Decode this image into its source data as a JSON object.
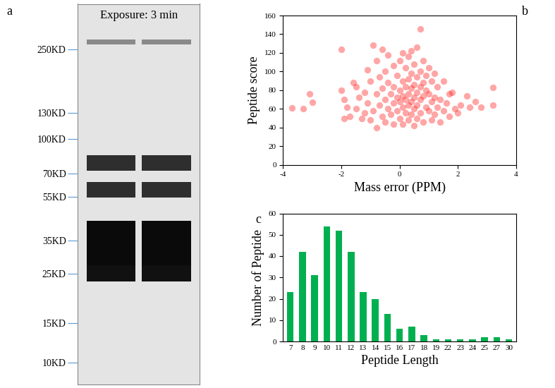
{
  "chart_data": [
    {
      "type": "blot",
      "panel": "a",
      "title": "Exposure: 3 min",
      "categories": [
        null,
        null
      ],
      "series": [
        {
          "values": [
            270,
            270
          ],
          "color": "#8a8a8a"
        },
        {
          "values": [
            78,
            78
          ],
          "color": "#2e2e2e"
        },
        {
          "values": [
            59,
            59
          ],
          "color": "#2e2e2e"
        },
        {
          "values": [
            34,
            34
          ],
          "color": "#0a0a0a"
        },
        {
          "values": [
            25,
            25
          ],
          "color": "#111111"
        }
      ],
      "log": "y",
      "tick_labels": "y",
      "ylim": [
        8,
        400
      ],
      "yticks": [
        {
          "value": 250,
          "label": "250KD"
        },
        {
          "value": 130,
          "label": "130KD"
        },
        {
          "value": 100,
          "label": "100KD"
        },
        {
          "value": 70,
          "label": "70KD"
        },
        {
          "value": 55,
          "label": "55KD"
        },
        {
          "value": 35,
          "label": "35KD"
        },
        {
          "value": 25,
          "label": "25KD"
        },
        {
          "value": 15,
          "label": "15KD"
        },
        {
          "value": 10,
          "label": "10KD"
        }
      ]
    },
    {
      "type": "scatter",
      "panel": "b",
      "x_label": "Mass error (PPM)",
      "y_label": "Peptide score",
      "color": "#ff0000",
      "marker": "o",
      "x": [
        -3.7,
        -3.3,
        -3.1,
        -3.0,
        -2.0,
        -2.0,
        -1.9,
        -1.9,
        -1.8,
        -1.7,
        -1.6,
        -1.5,
        -1.5,
        -1.4,
        -1.3,
        -1.2,
        -1.2,
        -1.1,
        -1.1,
        -1.0,
        -1.0,
        -0.9,
        -0.9,
        -0.8,
        -0.8,
        -0.8,
        -0.7,
        -0.7,
        -0.6,
        -0.6,
        -0.6,
        -0.5,
        -0.5,
        -0.5,
        -0.4,
        -0.4,
        -0.4,
        -0.3,
        -0.3,
        -0.2,
        -0.2,
        -0.2,
        -0.2,
        -0.1,
        -0.1,
        -0.1,
        0.0,
        0.0,
        0.0,
        0.0,
        0.1,
        0.1,
        0.1,
        0.1,
        0.1,
        0.2,
        0.2,
        0.2,
        0.2,
        0.3,
        0.3,
        0.3,
        0.3,
        0.3,
        0.4,
        0.4,
        0.4,
        0.4,
        0.4,
        0.5,
        0.5,
        0.5,
        0.5,
        0.5,
        0.6,
        0.6,
        0.6,
        0.6,
        0.6,
        0.7,
        0.7,
        0.7,
        0.7,
        0.7,
        0.8,
        0.8,
        0.8,
        0.8,
        0.9,
        0.9,
        0.9,
        1.0,
        1.0,
        1.0,
        1.1,
        1.1,
        1.1,
        1.2,
        1.2,
        1.2,
        1.3,
        1.3,
        1.4,
        1.4,
        1.5,
        1.5,
        1.6,
        1.7,
        1.7,
        1.8,
        1.9,
        2.0,
        2.1,
        2.3,
        2.4,
        2.6,
        2.8,
        3.2,
        3.2
      ],
      "values": [
        61,
        60,
        76,
        67,
        124,
        80,
        70,
        50,
        62,
        52,
        88,
        84,
        60,
        72,
        50,
        56,
        78,
        102,
        66,
        90,
        48,
        128,
        58,
        112,
        76,
        40,
        94,
        64,
        124,
        82,
        52,
        100,
        70,
        46,
        118,
        88,
        60,
        76,
        54,
        106,
        84,
        66,
        44,
        96,
        72,
        58,
        112,
        80,
        68,
        50,
        120,
        90,
        74,
        62,
        44,
        104,
        84,
        70,
        56,
        116,
        92,
        76,
        64,
        48,
        122,
        98,
        82,
        68,
        54,
        108,
        86,
        72,
        60,
        42,
        126,
        94,
        78,
        64,
        50,
        146,
        100,
        84,
        70,
        56,
        112,
        88,
        74,
        46,
        96,
        80,
        62,
        104,
        76,
        58,
        90,
        68,
        48,
        98,
        72,
        54,
        84,
        62,
        70,
        46,
        90,
        58,
        66,
        76,
        52,
        78,
        60,
        56,
        64,
        74,
        62,
        68,
        62,
        83,
        64
      ],
      "xlim": [
        -4,
        4
      ],
      "xticks": [
        -4,
        -2,
        0,
        2,
        4
      ],
      "ylim": [
        0,
        160
      ],
      "yticks": [
        0,
        20,
        40,
        60,
        80,
        100,
        120,
        140,
        160
      ]
    },
    {
      "type": "bar",
      "panel": "c",
      "x_label": "Peptide Length",
      "y_label": "Number of Peptide",
      "color": "#00b050",
      "categories": [
        "7",
        "8",
        "9",
        "10",
        "11",
        "12",
        "13",
        "14",
        "15",
        "16",
        "17",
        "18",
        "19",
        "22",
        "23",
        "24",
        "25",
        "27",
        "30"
      ],
      "values": [
        23,
        42,
        31,
        54,
        52,
        42,
        23,
        20,
        13,
        6,
        7,
        3,
        1,
        1,
        1,
        1,
        2,
        2,
        1
      ],
      "ylim": [
        0,
        60
      ],
      "yticks": [
        0,
        10,
        20,
        30,
        40,
        50,
        60
      ]
    }
  ]
}
